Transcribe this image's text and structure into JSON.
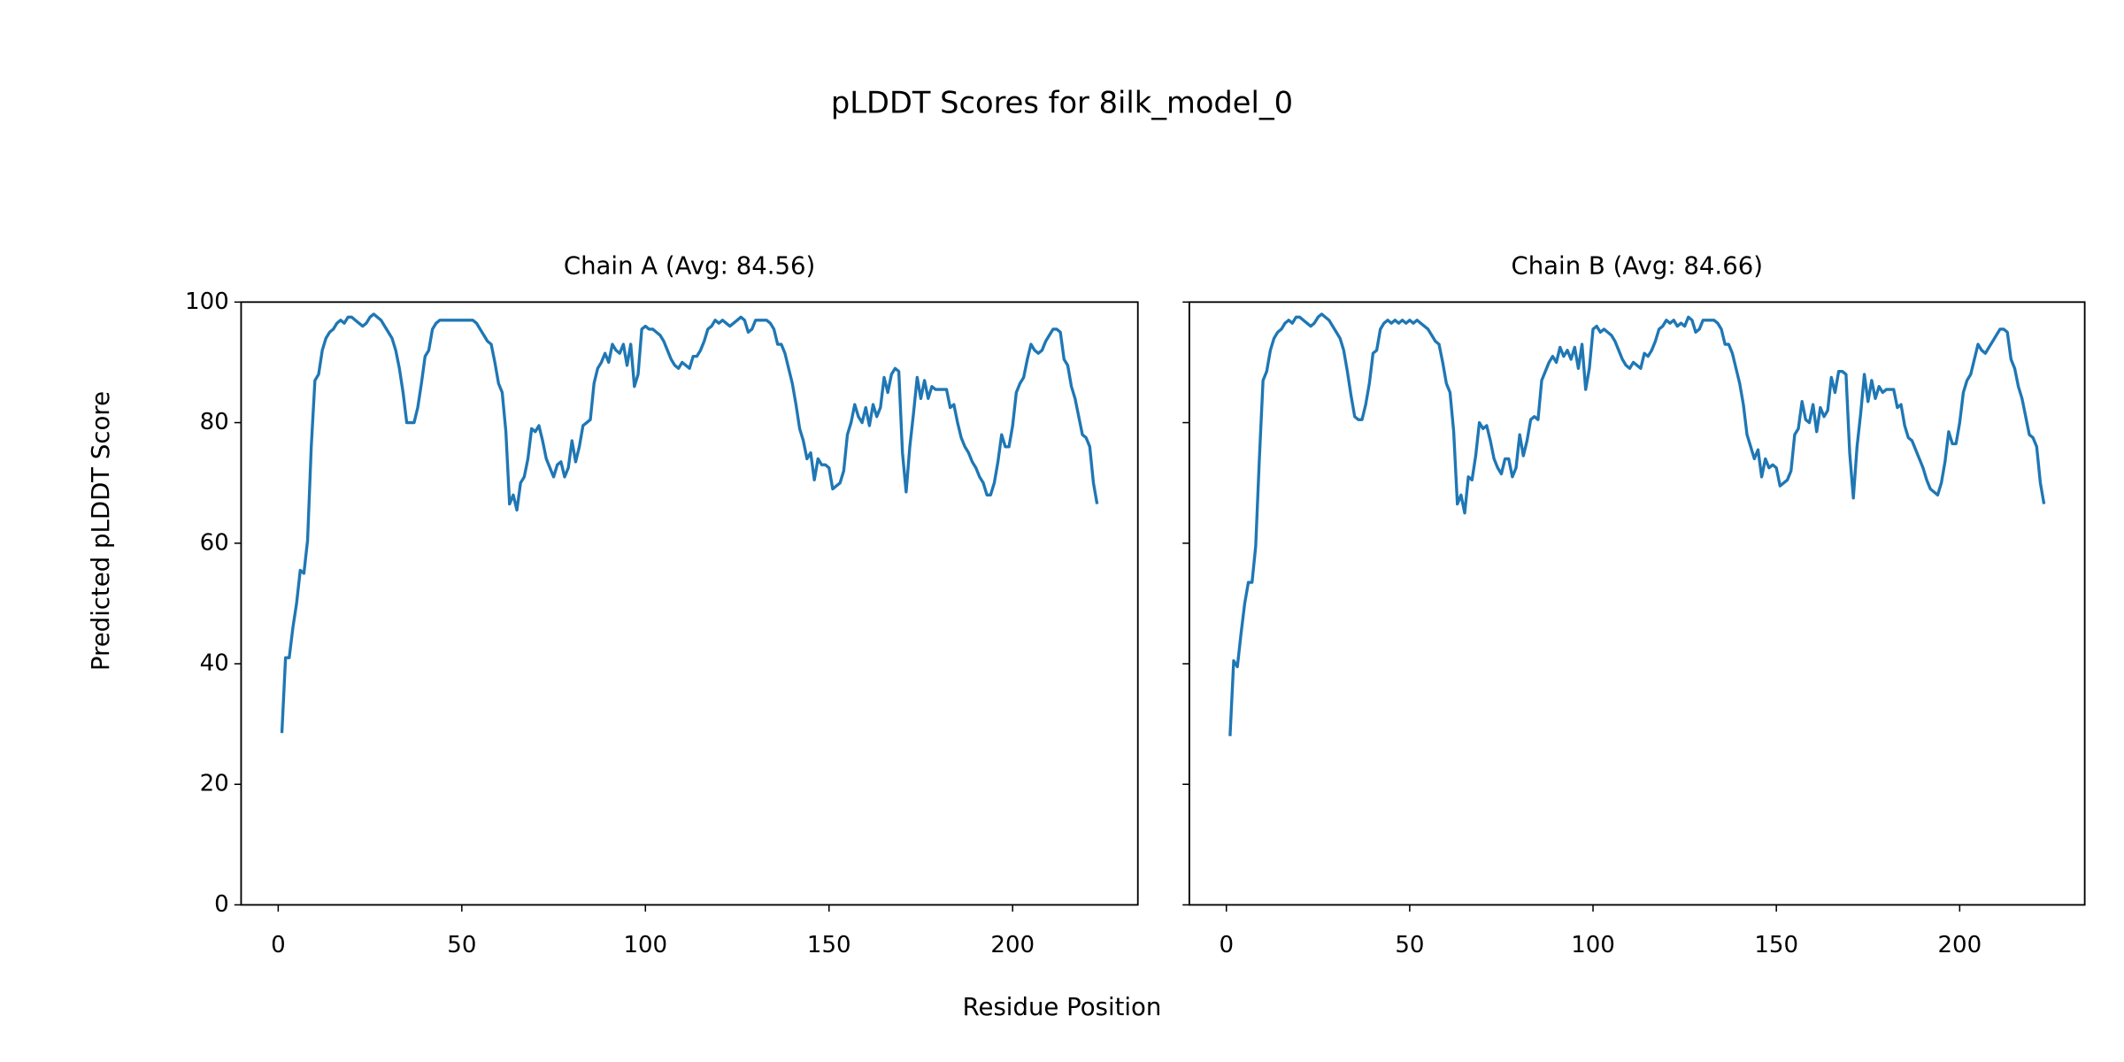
{
  "title": "pLDDT Scores for 8ilk_model_0",
  "x_label": "Residue Position",
  "y_label": "Predicted pLDDT Score",
  "chart_data": [
    {
      "type": "line",
      "title": "Chain A (Avg: 84.56)",
      "color": "#1f77b4",
      "x": [
        1,
        2,
        3,
        4,
        5,
        6,
        7,
        8,
        9,
        10,
        11,
        12,
        13,
        14,
        15,
        16,
        17,
        18,
        19,
        20,
        21,
        22,
        23,
        24,
        25,
        26,
        27,
        28,
        29,
        30,
        31,
        32,
        33,
        34,
        35,
        36,
        37,
        38,
        39,
        40,
        41,
        42,
        43,
        44,
        45,
        46,
        47,
        48,
        49,
        50,
        51,
        52,
        53,
        54,
        55,
        56,
        57,
        58,
        59,
        60,
        61,
        62,
        63,
        64,
        65,
        66,
        67,
        68,
        69,
        70,
        71,
        72,
        73,
        74,
        75,
        76,
        77,
        78,
        79,
        80,
        81,
        82,
        83,
        84,
        85,
        86,
        87,
        88,
        89,
        90,
        91,
        92,
        93,
        94,
        95,
        96,
        97,
        98,
        99,
        100,
        101,
        102,
        103,
        104,
        105,
        106,
        107,
        108,
        109,
        110,
        111,
        112,
        113,
        114,
        115,
        116,
        117,
        118,
        119,
        120,
        121,
        122,
        123,
        124,
        125,
        126,
        127,
        128,
        129,
        130,
        131,
        132,
        133,
        134,
        135,
        136,
        137,
        138,
        139,
        140,
        141,
        142,
        143,
        144,
        145,
        146,
        147,
        148,
        149,
        150,
        151,
        152,
        153,
        154,
        155,
        156,
        157,
        158,
        159,
        160,
        161,
        162,
        163,
        164,
        165,
        166,
        167,
        168,
        169,
        170,
        171,
        172,
        173,
        174,
        175,
        176,
        177,
        178,
        179,
        180,
        181,
        182,
        183,
        184,
        185,
        186,
        187,
        188,
        189,
        190,
        191,
        192,
        193,
        194,
        195,
        196,
        197,
        198,
        199,
        200,
        201,
        202,
        203,
        204,
        205,
        206,
        207,
        208,
        209,
        210,
        211,
        212,
        213,
        214,
        215,
        216,
        217,
        218,
        219,
        220,
        221,
        222,
        223
      ],
      "values": [
        28.5,
        41,
        41,
        46,
        50,
        55.5,
        55,
        60.5,
        76,
        87,
        88,
        92,
        94,
        95,
        95.5,
        96.5,
        97,
        96.5,
        97.5,
        97.5,
        97,
        96.5,
        96,
        96.5,
        97.5,
        98,
        97.5,
        97,
        96,
        95,
        94,
        92,
        89,
        85,
        80,
        80,
        80,
        82.5,
        86.5,
        91,
        92,
        95.5,
        96.5,
        97,
        97,
        97,
        97,
        97,
        97,
        97,
        97,
        97,
        97,
        96.5,
        95.5,
        94.5,
        93.5,
        93,
        90,
        86.5,
        85,
        78.5,
        66.5,
        68,
        65.5,
        70,
        71,
        74,
        79,
        78.5,
        79.5,
        77,
        74,
        72.5,
        71,
        73,
        73.5,
        71,
        72.5,
        77,
        73.5,
        76,
        79.5,
        80,
        80.5,
        86.5,
        89,
        90,
        91.5,
        90,
        93,
        92,
        91.5,
        93,
        89.5,
        93,
        86,
        88,
        95.5,
        96,
        95.5,
        95.5,
        95,
        94.5,
        93.5,
        92,
        90.5,
        89.5,
        89,
        90,
        89.5,
        89,
        91,
        91,
        92,
        93.5,
        95.5,
        96,
        97,
        96.5,
        97,
        96.5,
        96,
        96.5,
        97,
        97.5,
        97,
        95,
        95.5,
        97,
        97,
        97,
        97,
        96.5,
        95.5,
        93,
        93,
        91.5,
        89,
        86.5,
        83,
        79,
        77,
        74,
        75,
        70.5,
        74,
        73,
        73,
        72.5,
        69,
        69.5,
        70,
        72,
        78,
        80,
        83,
        81,
        80,
        82.5,
        79.5,
        83,
        81,
        82.5,
        87.5,
        85,
        88,
        89,
        88.5,
        75,
        68.5,
        76,
        81.5,
        87.5,
        84,
        87,
        84,
        86,
        85.5,
        85.5,
        85.5,
        85.5,
        82.5,
        83,
        80,
        77.5,
        76,
        75,
        73.5,
        72.5,
        71,
        70,
        68,
        68,
        70,
        73.5,
        78,
        76,
        76,
        79.5,
        85,
        86.5,
        87.5,
        90.5,
        93,
        92,
        91.5,
        92,
        93.5,
        94.5,
        95.5,
        95.5,
        95,
        90.5,
        89.5,
        86,
        84,
        81,
        78,
        77.5,
        76,
        70,
        66.5
      ],
      "xlim": [
        -10.1,
        234.1
      ],
      "xticks": [
        0,
        50,
        100,
        150,
        200
      ],
      "ylim": [
        0,
        100
      ],
      "yticks": [
        0,
        20,
        40,
        60,
        80,
        100
      ]
    },
    {
      "type": "line",
      "title": "Chain B (Avg: 84.66)",
      "color": "#1f77b4",
      "x": [
        1,
        2,
        3,
        4,
        5,
        6,
        7,
        8,
        9,
        10,
        11,
        12,
        13,
        14,
        15,
        16,
        17,
        18,
        19,
        20,
        21,
        22,
        23,
        24,
        25,
        26,
        27,
        28,
        29,
        30,
        31,
        32,
        33,
        34,
        35,
        36,
        37,
        38,
        39,
        40,
        41,
        42,
        43,
        44,
        45,
        46,
        47,
        48,
        49,
        50,
        51,
        52,
        53,
        54,
        55,
        56,
        57,
        58,
        59,
        60,
        61,
        62,
        63,
        64,
        65,
        66,
        67,
        68,
        69,
        70,
        71,
        72,
        73,
        74,
        75,
        76,
        77,
        78,
        79,
        80,
        81,
        82,
        83,
        84,
        85,
        86,
        87,
        88,
        89,
        90,
        91,
        92,
        93,
        94,
        95,
        96,
        97,
        98,
        99,
        100,
        101,
        102,
        103,
        104,
        105,
        106,
        107,
        108,
        109,
        110,
        111,
        112,
        113,
        114,
        115,
        116,
        117,
        118,
        119,
        120,
        121,
        122,
        123,
        124,
        125,
        126,
        127,
        128,
        129,
        130,
        131,
        132,
        133,
        134,
        135,
        136,
        137,
        138,
        139,
        140,
        141,
        142,
        143,
        144,
        145,
        146,
        147,
        148,
        149,
        150,
        151,
        152,
        153,
        154,
        155,
        156,
        157,
        158,
        159,
        160,
        161,
        162,
        163,
        164,
        165,
        166,
        167,
        168,
        169,
        170,
        171,
        172,
        173,
        174,
        175,
        176,
        177,
        178,
        179,
        180,
        181,
        182,
        183,
        184,
        185,
        186,
        187,
        188,
        189,
        190,
        191,
        192,
        193,
        194,
        195,
        196,
        197,
        198,
        199,
        200,
        201,
        202,
        203,
        204,
        205,
        206,
        207,
        208,
        209,
        210,
        211,
        212,
        213,
        214,
        215,
        216,
        217,
        218,
        219,
        220,
        221,
        222,
        223
      ],
      "values": [
        28,
        40.5,
        39.5,
        45,
        50,
        53.5,
        53.5,
        59.5,
        74,
        87,
        88.5,
        92,
        94,
        95,
        95.5,
        96.5,
        97,
        96.5,
        97.5,
        97.5,
        97,
        96.5,
        96,
        96.5,
        97.5,
        98,
        97.5,
        97,
        96,
        95,
        94,
        92,
        88.5,
        84.5,
        81,
        80.5,
        80.5,
        83,
        86.5,
        91.5,
        92,
        95.5,
        96.5,
        97,
        96.5,
        97,
        96.5,
        97,
        96.5,
        97,
        96.5,
        97,
        96.5,
        96,
        95.5,
        94.5,
        93.5,
        93,
        90,
        86.5,
        85,
        78.5,
        66.5,
        68,
        65,
        71,
        70.5,
        74.5,
        80,
        79,
        79.5,
        77,
        74,
        72.5,
        71.5,
        74,
        74,
        71,
        72.5,
        78,
        74.5,
        77,
        80.5,
        81,
        80.5,
        87,
        88.5,
        90,
        91,
        90,
        92.5,
        91,
        92,
        90.5,
        92.5,
        89,
        93,
        85.5,
        89,
        95.5,
        96,
        95,
        95.5,
        95,
        94.5,
        93.5,
        92,
        90.5,
        89.5,
        89,
        90,
        89.5,
        89,
        91.5,
        91,
        92,
        93.5,
        95.5,
        96,
        97,
        96.5,
        97,
        96,
        96.5,
        96,
        97.5,
        97,
        95,
        95.5,
        97,
        97,
        97,
        97,
        96.5,
        95.5,
        93,
        93,
        91.5,
        89,
        86.5,
        83,
        78,
        76,
        74,
        75.5,
        71,
        74,
        72.5,
        73,
        72.5,
        69.5,
        70,
        70.5,
        72,
        78,
        79,
        83.5,
        80.5,
        80,
        83,
        78.5,
        82.5,
        81,
        82,
        87.5,
        85,
        88.5,
        88.5,
        88,
        75,
        67.5,
        76,
        81.5,
        88,
        83.5,
        87,
        84,
        86,
        85,
        85.5,
        85.5,
        85.5,
        82.5,
        83,
        79.5,
        77.5,
        77,
        75.5,
        74,
        72.5,
        70.5,
        69,
        68.5,
        68,
        70,
        73.5,
        78.5,
        76.5,
        76.5,
        80,
        85,
        87,
        88,
        90.5,
        93,
        92,
        91.5,
        92.5,
        93.5,
        94.5,
        95.5,
        95.5,
        95,
        90.5,
        89,
        86,
        84,
        81,
        78,
        77.5,
        76,
        70,
        66.5
      ],
      "xlim": [
        -10.1,
        234.1
      ],
      "xticks": [
        0,
        50,
        100,
        150,
        200
      ],
      "ylim": [
        0,
        100
      ],
      "yticks": [
        0,
        20,
        40,
        60,
        80,
        100
      ],
      "sharey": true
    }
  ]
}
